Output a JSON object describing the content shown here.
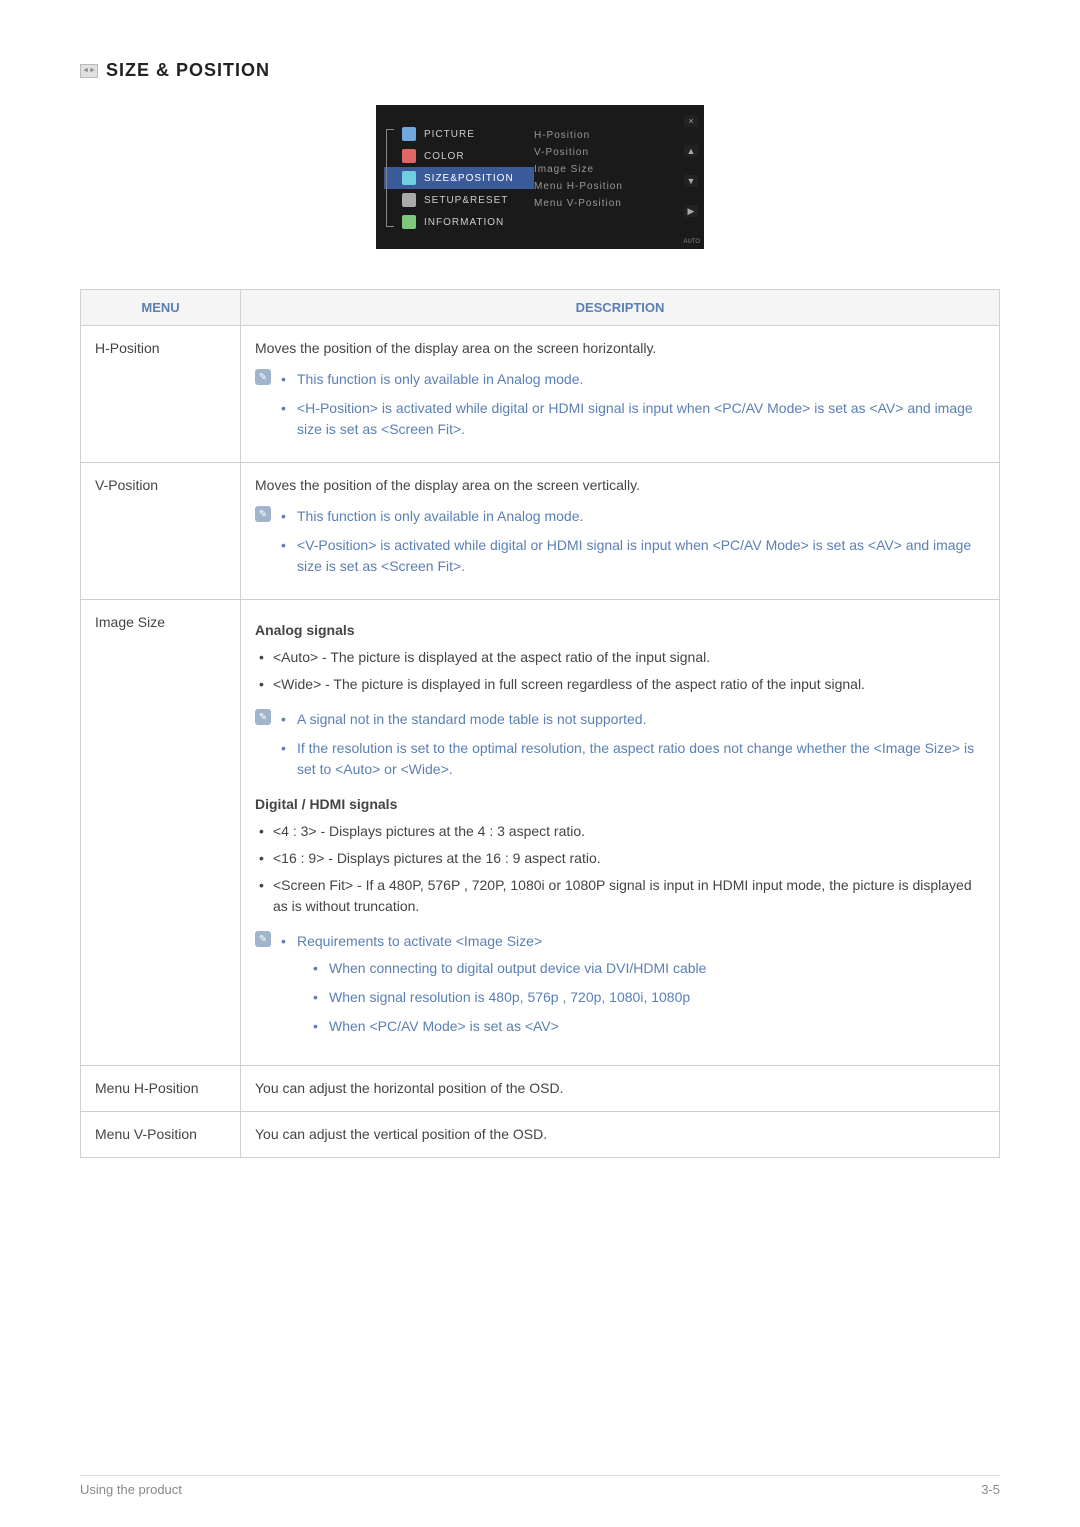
{
  "header": {
    "title": "SIZE & POSITION"
  },
  "osd": {
    "left_items": [
      {
        "label": "PICTURE",
        "icon_color": "#6fa8dc"
      },
      {
        "label": "COLOR",
        "icon_color": "#e06666"
      },
      {
        "label": "SIZE&POSITION",
        "icon_color": "#6fcfe0",
        "selected": true
      },
      {
        "label": "SETUP&RESET",
        "icon_color": "#aaaaaa"
      },
      {
        "label": "INFORMATION",
        "icon_color": "#7fc97f"
      }
    ],
    "right_items": [
      "H-Position",
      "V-Position",
      "Image Size",
      "Menu H-Position",
      "Menu V-Position"
    ],
    "auto_label": "AUTO"
  },
  "table": {
    "headers": {
      "menu": "MENU",
      "description": "DESCRIPTION"
    },
    "rows": [
      {
        "menu": "H-Position",
        "desc_intro": "Moves the position of the display area on the screen horizontally.",
        "note_items": [
          "This function is only available in Analog mode.",
          "<H-Position> is activated while digital or HDMI signal is input when <PC/AV Mode> is set as <AV> and image size is set as <Screen Fit>."
        ]
      },
      {
        "menu": "V-Position",
        "desc_intro": "Moves the position of the display area on the screen vertically.",
        "note_items": [
          "This function is only available in Analog mode.",
          "<V-Position> is activated while digital or HDMI signal is input when <PC/AV Mode> is set as <AV> and image size is set as <Screen Fit>."
        ]
      },
      {
        "menu": "Image Size",
        "analog_title": "Analog signals",
        "analog_items": [
          "<Auto> - The picture is displayed at the aspect ratio of the input signal.",
          "<Wide> - The picture is displayed in full screen regardless of the aspect ratio of the input signal."
        ],
        "analog_notes": [
          "A signal not in the standard mode table is not supported.",
          "If the resolution is set to the optimal resolution, the aspect ratio does not change whether the <Image Size> is set to <Auto> or <Wide>."
        ],
        "digital_title": "Digital / HDMI signals",
        "digital_items": [
          "<4 : 3> - Displays pictures at the 4 : 3 aspect ratio.",
          "<16 : 9> - Displays pictures at the 16 : 9 aspect ratio.",
          "<Screen Fit> - If a 480P, 576P , 720P, 1080i or 1080P signal is input in HDMI input mode, the picture is displayed as is without truncation."
        ],
        "digital_note_head": "Requirements to activate <Image Size>",
        "digital_note_sub": [
          "When connecting to digital output device via DVI/HDMI cable",
          "When signal resolution is 480p, 576p , 720p, 1080i, 1080p",
          "When <PC/AV Mode> is set as <AV>"
        ]
      },
      {
        "menu": "Menu H-Position",
        "desc_intro": "You can adjust the horizontal position of the OSD."
      },
      {
        "menu": "Menu V-Position",
        "desc_intro": "You can adjust the vertical position of the OSD."
      }
    ]
  },
  "footer": {
    "left": "Using the product",
    "right": "3-5"
  },
  "colors": {
    "accent": "#5a7fb5",
    "osd_bg": "#1a1a1a",
    "osd_sel": "#3a5a9a"
  }
}
